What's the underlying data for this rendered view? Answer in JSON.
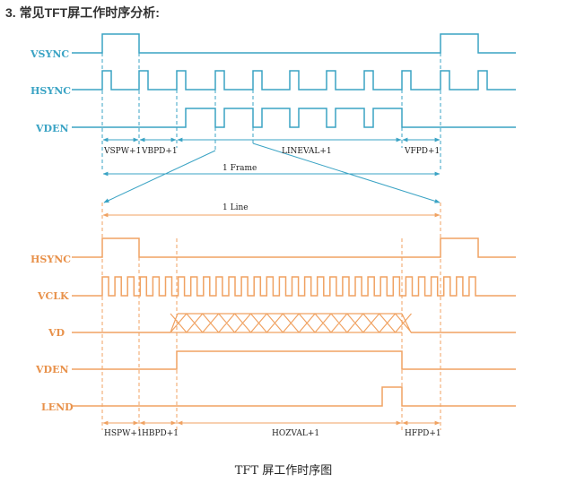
{
  "heading": "3. 常见TFT屏工作时序分析:",
  "caption": "TFT 屏工作时序图",
  "colors": {
    "frame": "#3aa3c4",
    "line": "#f0a262",
    "label_frame": "#3aa3c4",
    "label_line": "#e8914a"
  },
  "frame_signals": {
    "vsync": "VSYNC",
    "hsync": "HSYNC",
    "vden": "VDEN"
  },
  "frame_intervals": {
    "vspw": "VSPW+1",
    "vbpd": "VBPD+1",
    "lineval": "LINEVAL+1",
    "vfpd": "VFPD+1",
    "frame": "1 Frame"
  },
  "line_span": "1 Line",
  "line_signals": {
    "hsync": "HSYNC",
    "vclk": "VCLK",
    "vd": "VD",
    "vden": "VDEN",
    "lend": "LEND"
  },
  "line_intervals": {
    "hspw": "HSPW+1",
    "hbpd": "HBPD+1",
    "hozval": "HOZVAL+1",
    "hfpd": "HFPD+1"
  }
}
